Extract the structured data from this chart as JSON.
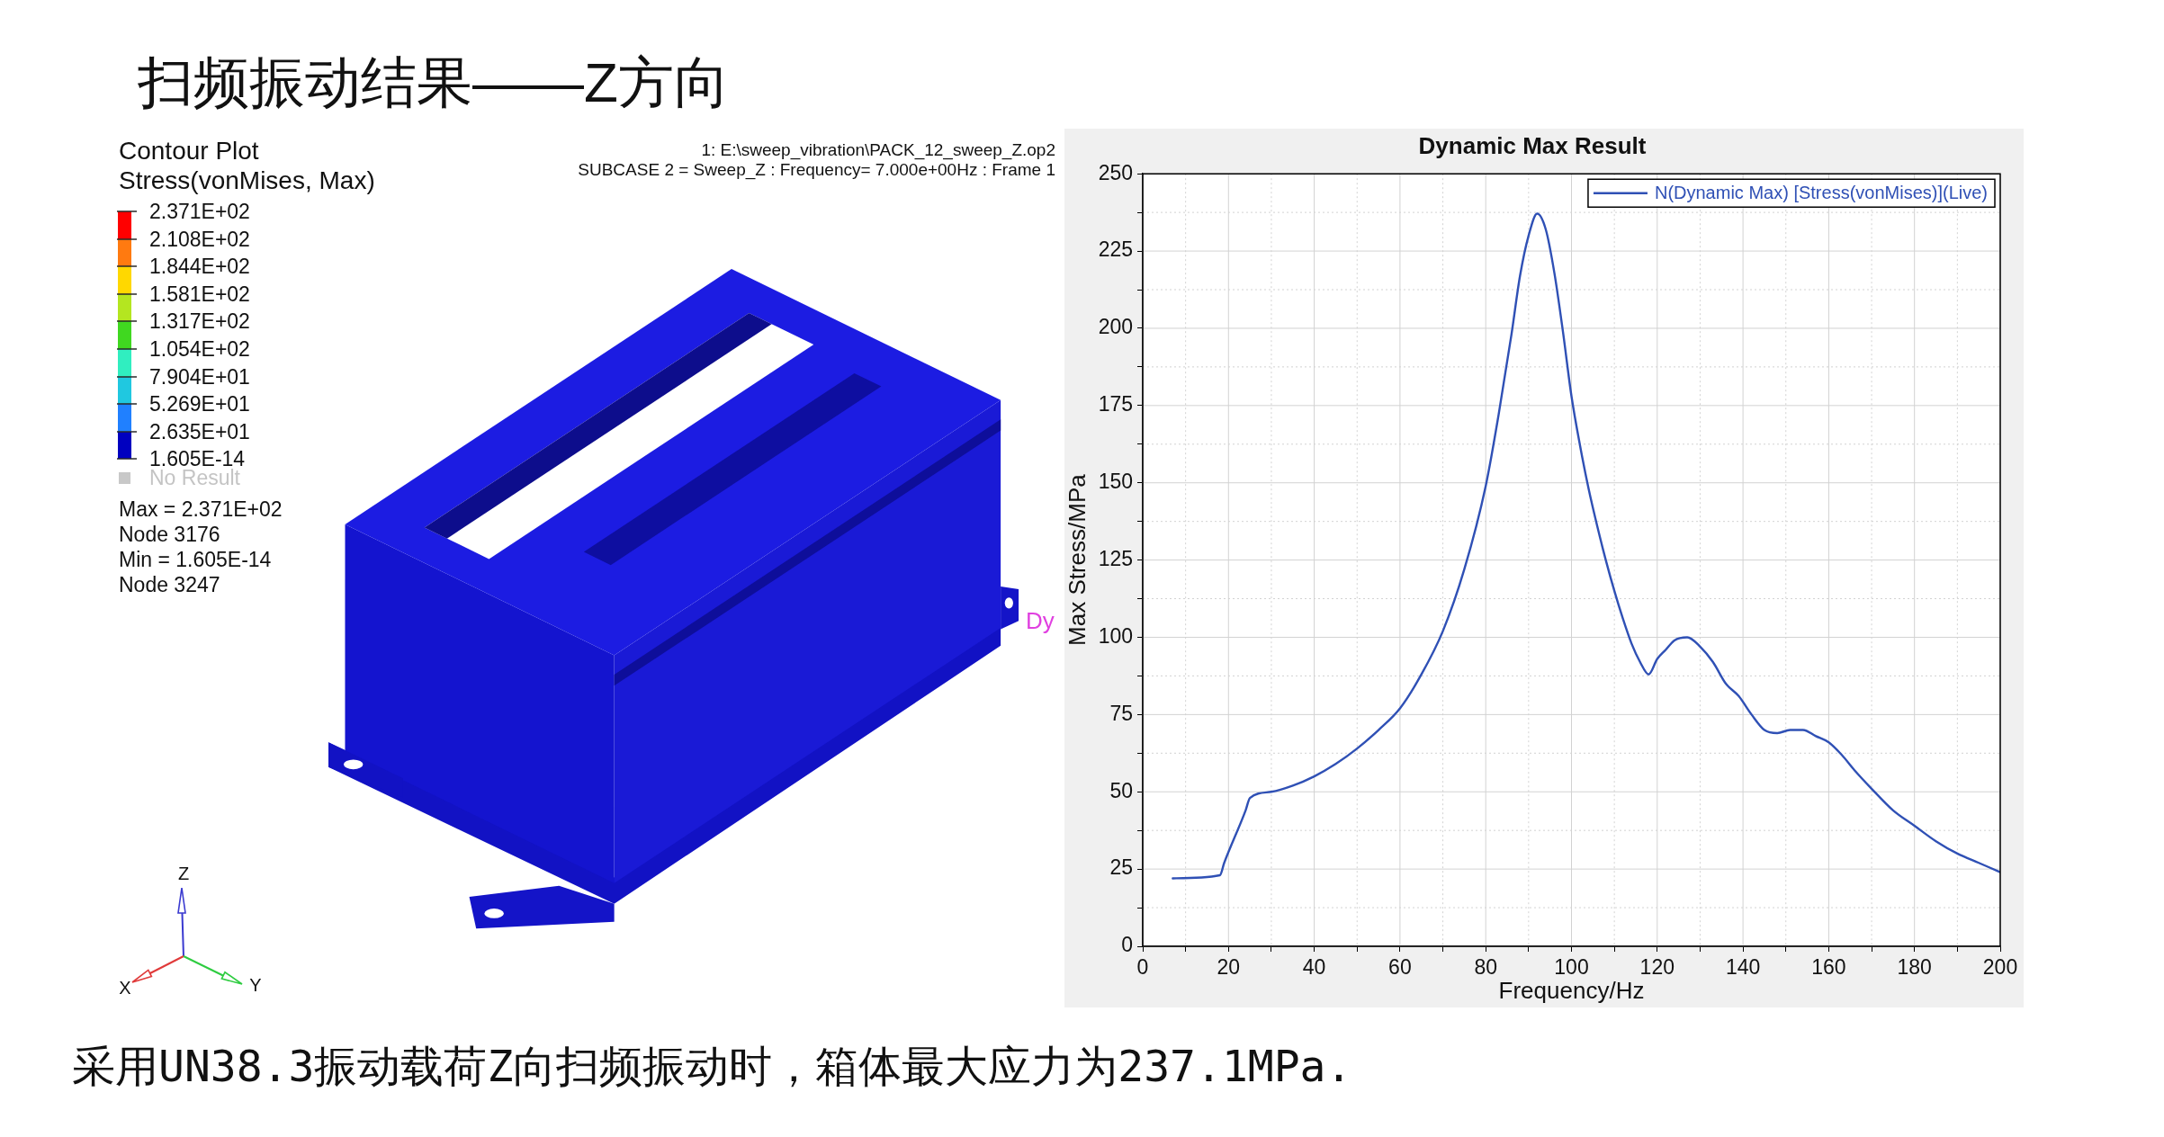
{
  "chart_data": [
    {
      "type": "other",
      "title": "扫频振动结果——Z方向",
      "annotations": [
        "Contour Plot",
        "Stress(vonMises, Max)",
        "2.371E+02",
        "2.108E+02",
        "1.844E+02",
        "1.581E+02",
        "1.317E+02",
        "1.054E+02",
        "7.904E+01",
        "5.269E+01",
        "2.635E+01",
        "1.605E-14",
        "No Result",
        "Max = 2.371E+02",
        "Node 3176",
        "Min = 1.605E-14",
        "Node 3247",
        "1: E:\\sweep_vibration\\PACK_12_sweep_Z.op2",
        "SUBCASE 2 = Sweep_Z : Frequency= 7.000e+00Hz : Frame 1",
        "Dy",
        "Z",
        "X",
        "Y",
        "采用UN38.3振动载荷Z向扫频振动时，箱体最大应力为237.1MPa."
      ]
    },
    {
      "type": "line",
      "title": "Dynamic Max Result",
      "xlabel": "Frequency/Hz",
      "ylabel": "Max Stress/MPa",
      "x": [
        7,
        18,
        19,
        24,
        25,
        30,
        35,
        40,
        45,
        50,
        55,
        60,
        65,
        70,
        75,
        80,
        83,
        86,
        88,
        90,
        92,
        94,
        96,
        98,
        100,
        102,
        104,
        106,
        108,
        110,
        112,
        114,
        116,
        118,
        120,
        122,
        124,
        127,
        130,
        133,
        136,
        139,
        142,
        145,
        148,
        151,
        154,
        157,
        160,
        163,
        166,
        170,
        175,
        180,
        185,
        190,
        195,
        200
      ],
      "series": [
        {
          "name": "N(Dynamic Max) [Stress(vonMises)](Live)",
          "color": "#2f50b5",
          "values": [
            22,
            23,
            27,
            44,
            48,
            50,
            52,
            55,
            59,
            64,
            70,
            77,
            88,
            102,
            122,
            149,
            172,
            198,
            217,
            230,
            237.1,
            232,
            218,
            199,
            178,
            162,
            148,
            136,
            125,
            115,
            106,
            98,
            92,
            88,
            93,
            96,
            99,
            100,
            97,
            92,
            85,
            81,
            75,
            70,
            69,
            70,
            70,
            68,
            66,
            62,
            57,
            51,
            44,
            39,
            34,
            30,
            27,
            24
          ]
        }
      ],
      "xlim": [
        0,
        200
      ],
      "xticks": [
        0,
        {
          "value": 10,
          "label": null
        },
        20,
        {
          "value": 30,
          "label": null
        },
        40,
        {
          "value": 50,
          "label": null
        },
        60,
        {
          "value": 70,
          "label": null
        },
        80,
        {
          "value": 90,
          "label": null
        },
        100,
        {
          "value": 110,
          "label": null
        },
        120,
        {
          "value": 130,
          "label": null
        },
        140,
        {
          "value": 150,
          "label": null
        },
        160,
        {
          "value": 170,
          "label": null
        },
        180,
        {
          "value": 190,
          "label": null
        },
        200
      ],
      "ylim": [
        0,
        250
      ],
      "yticks": [
        0,
        {
          "value": 12.5,
          "label": null
        },
        25,
        {
          "value": 37.5,
          "label": null
        },
        50,
        {
          "value": 62.5,
          "label": null
        },
        75,
        {
          "value": 87.5,
          "label": null
        },
        100,
        {
          "value": 112.5,
          "label": null
        },
        125,
        {
          "value": 137.5,
          "label": null
        },
        150,
        {
          "value": 162.5,
          "label": null
        },
        175,
        {
          "value": 187.5,
          "label": null
        },
        200,
        {
          "value": 212.5,
          "label": null
        },
        225,
        {
          "value": 237.5,
          "label": null
        },
        250
      ],
      "grid": true,
      "legend": "top right"
    }
  ]
}
